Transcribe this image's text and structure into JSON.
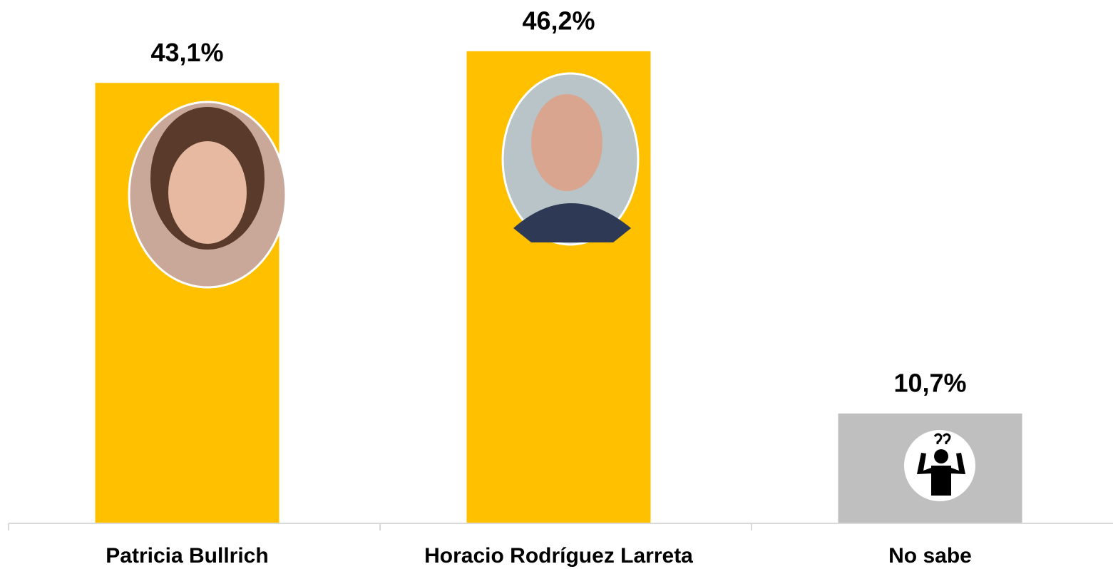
{
  "chart_data": {
    "type": "bar",
    "categories": [
      "Patricia Bullrich",
      "Horacio Rodríguez Larreta",
      "No sabe"
    ],
    "values": [
      43.1,
      46.2,
      10.7
    ],
    "value_labels": [
      "43,1%",
      "46,2%",
      "10,7%"
    ],
    "colors": [
      "#FFC000",
      "#FFC000",
      "#BFBFBF"
    ]
  }
}
